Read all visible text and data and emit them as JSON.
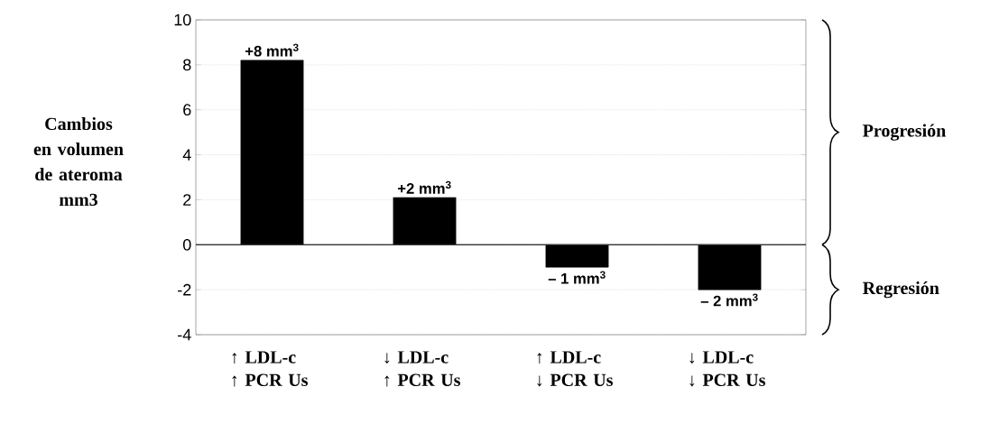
{
  "chart_data": {
    "type": "bar",
    "ylabel": "Cambios en volumen de ateroma mm3",
    "categories": [
      "↑ LDL-c ↑ PCR Us",
      "↓ LDL-c ↑ PCR Us",
      "↑ LDL-c ↓ PCR Us",
      "↓ LDL-c ↓ PCR Us"
    ],
    "values": [
      8.2,
      2.1,
      -1,
      -2
    ],
    "value_labels": [
      "+8 mm$^{3}$",
      "+2 mm$^{3}$",
      "– 1 mm$^{3}$",
      "– 2 mm$^{3}$"
    ],
    "color": "#000000",
    "ylim": [
      -4,
      10
    ],
    "yticks": [
      -4,
      -2,
      0,
      2,
      4,
      6,
      8,
      10
    ],
    "grid": "y",
    "annotations": [
      "Progresión",
      "Regresión"
    ]
  }
}
